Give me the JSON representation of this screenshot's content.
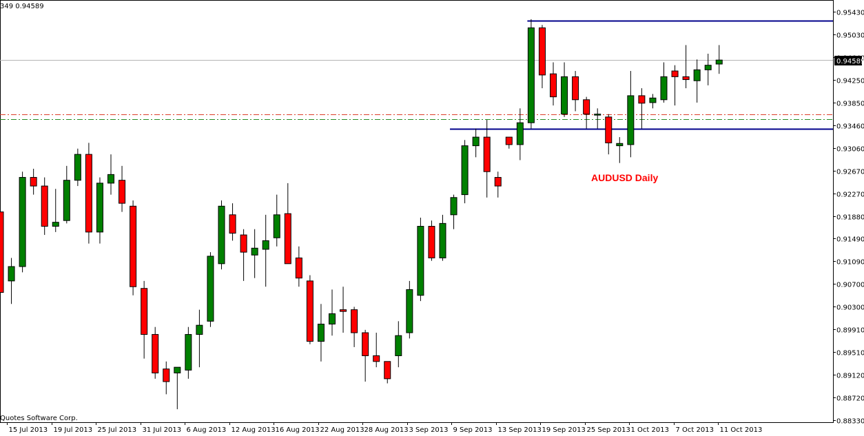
{
  "header_info": "349 0.94589",
  "copyright": "Quotes Software Corp.",
  "chart_data": {
    "type": "candlestick",
    "title": "AUDUSD Daily",
    "price_axis": {
      "ticks": [
        "0.95430",
        "0.95030",
        "0.94640",
        "0.94250",
        "0.93850",
        "0.93460",
        "0.93060",
        "0.92670",
        "0.92270",
        "0.91880",
        "0.91490",
        "0.91090",
        "0.90700",
        "0.90300",
        "0.89910",
        "0.89510",
        "0.89120",
        "0.88720",
        "0.88330"
      ],
      "range": [
        0.8829,
        0.9558
      ]
    },
    "current_price": "0.94589",
    "date_axis": [
      "15 Jul 2013",
      "19 Jul 2013",
      "25 Jul 2013",
      "31 Jul 2013",
      "6 Aug 2013",
      "12 Aug 2013",
      "16 Aug 2013",
      "22 Aug 2013",
      "28 Aug 2013",
      "3 Sep 2013",
      "9 Sep 2013",
      "13 Sep 2013",
      "19 Sep 2013",
      "25 Sep 2013",
      "1 Oct 2013",
      "7 Oct 2013",
      "11 Oct 2013"
    ],
    "candles": [
      {
        "o": 0.9195,
        "h": 0.9195,
        "l": 0.9055,
        "c": 0.9055
      },
      {
        "o": 0.9075,
        "h": 0.9115,
        "l": 0.9035,
        "c": 0.91
      },
      {
        "o": 0.91,
        "h": 0.9265,
        "l": 0.909,
        "c": 0.9255
      },
      {
        "o": 0.9255,
        "h": 0.927,
        "l": 0.9225,
        "c": 0.924
      },
      {
        "o": 0.924,
        "h": 0.9255,
        "l": 0.9155,
        "c": 0.917
      },
      {
        "o": 0.917,
        "h": 0.9235,
        "l": 0.916,
        "c": 0.9177
      },
      {
        "o": 0.918,
        "h": 0.9275,
        "l": 0.9175,
        "c": 0.925
      },
      {
        "o": 0.925,
        "h": 0.9305,
        "l": 0.924,
        "c": 0.9295
      },
      {
        "o": 0.9295,
        "h": 0.9315,
        "l": 0.914,
        "c": 0.916
      },
      {
        "o": 0.916,
        "h": 0.9255,
        "l": 0.914,
        "c": 0.9245
      },
      {
        "o": 0.9245,
        "h": 0.9295,
        "l": 0.9225,
        "c": 0.926
      },
      {
        "o": 0.925,
        "h": 0.9275,
        "l": 0.9195,
        "c": 0.921
      },
      {
        "o": 0.9205,
        "h": 0.9215,
        "l": 0.905,
        "c": 0.9065
      },
      {
        "o": 0.9062,
        "h": 0.9075,
        "l": 0.894,
        "c": 0.8982
      },
      {
        "o": 0.8982,
        "h": 0.8995,
        "l": 0.8905,
        "c": 0.8915
      },
      {
        "o": 0.8922,
        "h": 0.8935,
        "l": 0.8878,
        "c": 0.89
      },
      {
        "o": 0.8915,
        "h": 0.8925,
        "l": 0.8852,
        "c": 0.8925
      },
      {
        "o": 0.892,
        "h": 0.8995,
        "l": 0.8905,
        "c": 0.8982
      },
      {
        "o": 0.8982,
        "h": 0.9025,
        "l": 0.8925,
        "c": 0.8998
      },
      {
        "o": 0.9005,
        "h": 0.9125,
        "l": 0.8995,
        "c": 0.9118
      },
      {
        "o": 0.9105,
        "h": 0.9215,
        "l": 0.9095,
        "c": 0.9205
      },
      {
        "o": 0.919,
        "h": 0.921,
        "l": 0.9145,
        "c": 0.9158
      },
      {
        "o": 0.9155,
        "h": 0.9165,
        "l": 0.9075,
        "c": 0.9125
      },
      {
        "o": 0.912,
        "h": 0.9165,
        "l": 0.908,
        "c": 0.9132
      },
      {
        "o": 0.913,
        "h": 0.919,
        "l": 0.9065,
        "c": 0.9145
      },
      {
        "o": 0.915,
        "h": 0.9225,
        "l": 0.9135,
        "c": 0.919
      },
      {
        "o": 0.9192,
        "h": 0.9245,
        "l": 0.9105,
        "c": 0.9105
      },
      {
        "o": 0.9115,
        "h": 0.9135,
        "l": 0.9065,
        "c": 0.908
      },
      {
        "o": 0.9075,
        "h": 0.9085,
        "l": 0.8965,
        "c": 0.897
      },
      {
        "o": 0.897,
        "h": 0.9035,
        "l": 0.8935,
        "c": 0.9
      },
      {
        "o": 0.9,
        "h": 0.906,
        "l": 0.898,
        "c": 0.9018
      },
      {
        "o": 0.9025,
        "h": 0.9065,
        "l": 0.8985,
        "c": 0.9022
      },
      {
        "o": 0.9025,
        "h": 0.903,
        "l": 0.896,
        "c": 0.8985
      },
      {
        "o": 0.8985,
        "h": 0.899,
        "l": 0.89,
        "c": 0.8945
      },
      {
        "o": 0.8945,
        "h": 0.8985,
        "l": 0.8925,
        "c": 0.8935
      },
      {
        "o": 0.8935,
        "h": 0.8935,
        "l": 0.8897,
        "c": 0.8905
      },
      {
        "o": 0.8945,
        "h": 0.9005,
        "l": 0.8925,
        "c": 0.898
      },
      {
        "o": 0.8985,
        "h": 0.9075,
        "l": 0.8975,
        "c": 0.906
      },
      {
        "o": 0.905,
        "h": 0.9185,
        "l": 0.904,
        "c": 0.917
      },
      {
        "o": 0.917,
        "h": 0.918,
        "l": 0.911,
        "c": 0.9115
      },
      {
        "o": 0.9115,
        "h": 0.919,
        "l": 0.911,
        "c": 0.9175
      },
      {
        "o": 0.919,
        "h": 0.9225,
        "l": 0.9165,
        "c": 0.922
      },
      {
        "o": 0.9225,
        "h": 0.932,
        "l": 0.921,
        "c": 0.931
      },
      {
        "o": 0.931,
        "h": 0.934,
        "l": 0.929,
        "c": 0.9325
      },
      {
        "o": 0.9325,
        "h": 0.9355,
        "l": 0.922,
        "c": 0.9265
      },
      {
        "o": 0.9255,
        "h": 0.9265,
        "l": 0.922,
        "c": 0.924
      },
      {
        "o": 0.9325,
        "h": 0.9325,
        "l": 0.9305,
        "c": 0.9312
      },
      {
        "o": 0.9312,
        "h": 0.9375,
        "l": 0.9285,
        "c": 0.935
      },
      {
        "o": 0.935,
        "h": 0.953,
        "l": 0.934,
        "c": 0.9515
      },
      {
        "o": 0.9515,
        "h": 0.952,
        "l": 0.941,
        "c": 0.9433
      },
      {
        "o": 0.9435,
        "h": 0.9455,
        "l": 0.938,
        "c": 0.9395
      },
      {
        "o": 0.9365,
        "h": 0.9455,
        "l": 0.936,
        "c": 0.943
      },
      {
        "o": 0.943,
        "h": 0.944,
        "l": 0.937,
        "c": 0.939
      },
      {
        "o": 0.939,
        "h": 0.9395,
        "l": 0.934,
        "c": 0.9365
      },
      {
        "o": 0.9365,
        "h": 0.9375,
        "l": 0.934,
        "c": 0.9365
      },
      {
        "o": 0.936,
        "h": 0.9365,
        "l": 0.9295,
        "c": 0.9315
      },
      {
        "o": 0.931,
        "h": 0.9325,
        "l": 0.928,
        "c": 0.9314
      },
      {
        "o": 0.9312,
        "h": 0.944,
        "l": 0.929,
        "c": 0.9397
      },
      {
        "o": 0.9397,
        "h": 0.941,
        "l": 0.934,
        "c": 0.9384
      },
      {
        "o": 0.9385,
        "h": 0.94,
        "l": 0.9375,
        "c": 0.9393
      },
      {
        "o": 0.939,
        "h": 0.9455,
        "l": 0.9385,
        "c": 0.943
      },
      {
        "o": 0.944,
        "h": 0.945,
        "l": 0.938,
        "c": 0.943
      },
      {
        "o": 0.943,
        "h": 0.9485,
        "l": 0.941,
        "c": 0.9425
      },
      {
        "o": 0.9423,
        "h": 0.946,
        "l": 0.9385,
        "c": 0.9442
      },
      {
        "o": 0.9442,
        "h": 0.947,
        "l": 0.9415,
        "c": 0.945
      },
      {
        "o": 0.9452,
        "h": 0.9485,
        "l": 0.9435,
        "c": 0.9459
      }
    ],
    "candle_colors": {
      "up": "#008000",
      "down": "#ff0000",
      "wick": "#000000"
    },
    "levels": [
      {
        "style": "solid",
        "color": "#00008b",
        "value": 0.9528,
        "from_index": 48
      },
      {
        "style": "solid",
        "color": "#00008b",
        "value": 0.934,
        "from_index": 41
      },
      {
        "style": "dashdot",
        "color": "#dc3c28",
        "value": 0.9365
      },
      {
        "style": "dashdot",
        "color": "#228b22",
        "value": 0.9356
      },
      {
        "style": "solid",
        "color": "#b4b4b4",
        "value": 0.9459
      }
    ]
  }
}
